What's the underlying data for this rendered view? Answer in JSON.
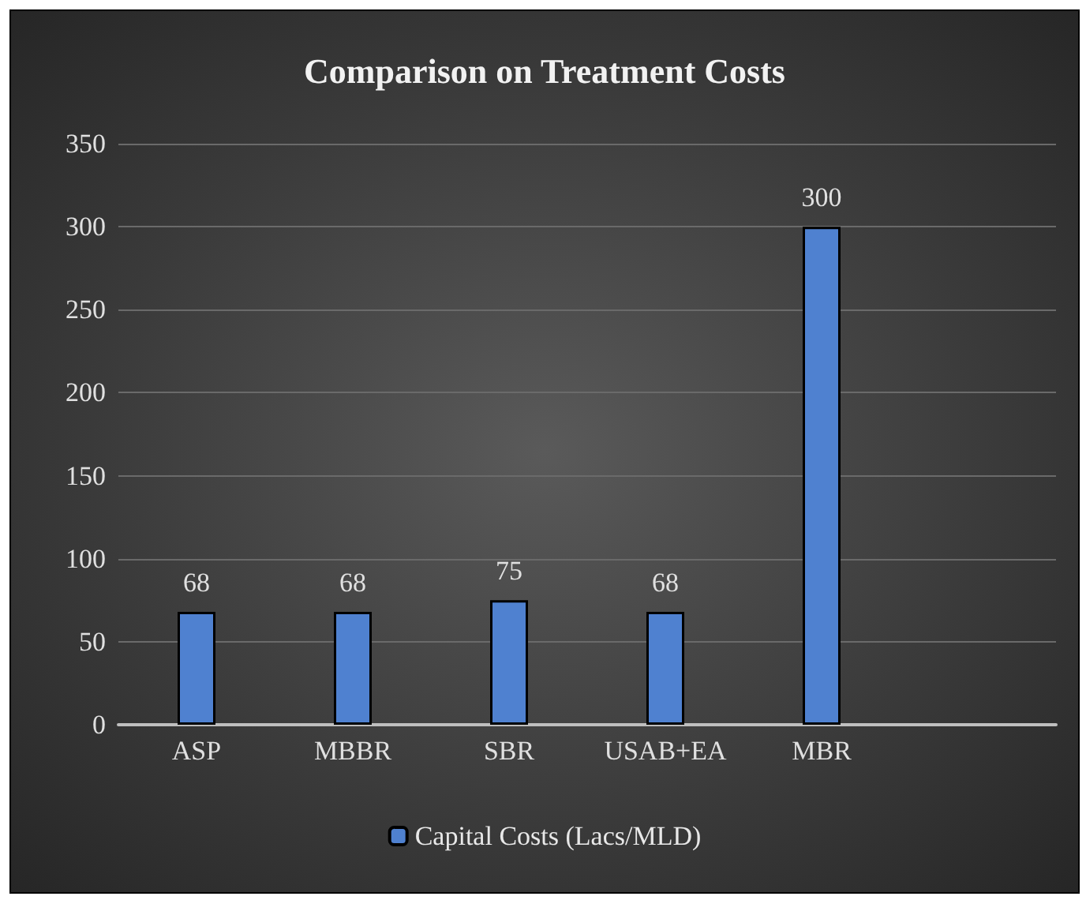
{
  "chart_data": {
    "type": "bar",
    "title": "Comparison on Treatment Costs",
    "categories": [
      "ASP",
      "MBBR",
      "SBR",
      "USAB+EA",
      "MBR",
      null
    ],
    "series": [
      {
        "name": "Capital Costs (Lacs/MLD)",
        "color": "#4f81d0",
        "values": [
          68,
          68,
          75,
          68,
          300,
          null
        ]
      }
    ],
    "ylim": [
      0,
      350
    ],
    "yticks": [
      0,
      50,
      100,
      150,
      200,
      250,
      300,
      350
    ],
    "grid": "y",
    "legend": "bottom",
    "data_labels": true
  }
}
